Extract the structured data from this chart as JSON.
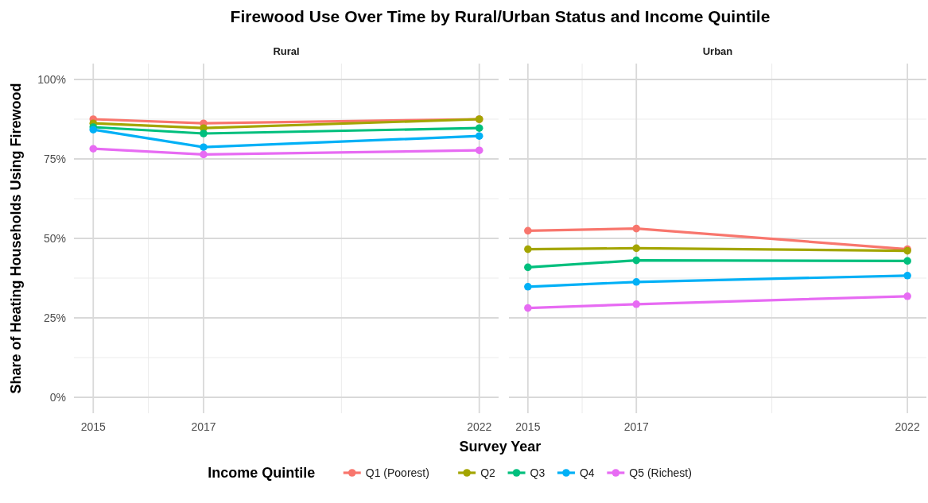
{
  "chart_data": [
    {
      "type": "line",
      "title": "Firewood Use Over Time by Rural/Urban Status and Income Quintile",
      "subtitle": "Rural",
      "xlabel": "Survey Year",
      "ylabel": "Share of Heating Households Using Firewood",
      "legend_title": "Income Quintile",
      "legend": "bottom",
      "grid": true,
      "marker": "circle",
      "line_style": "solid",
      "x": [
        2015,
        2017,
        2022
      ],
      "xlim": [
        2014.65,
        2022.35
      ],
      "xticks": [
        2015,
        2017,
        2022
      ],
      "ylim": [
        -5,
        105
      ],
      "yticks": [
        {
          "value": 0,
          "label": "0%"
        },
        {
          "value": 25,
          "label": "25%"
        },
        {
          "value": 50,
          "label": "50%"
        },
        {
          "value": 75,
          "label": "75%"
        },
        {
          "value": 100,
          "label": "100%"
        }
      ],
      "series": [
        {
          "name": "Q1 (Poorest)",
          "color": "#f8766d",
          "values": [
            87.5,
            86.2,
            87.5
          ]
        },
        {
          "name": "Q2",
          "color": "#a3a500",
          "values": [
            86.2,
            84.7,
            87.5
          ]
        },
        {
          "name": "Q3",
          "color": "#00bf7d",
          "values": [
            85.0,
            83.0,
            84.7
          ]
        },
        {
          "name": "Q4",
          "color": "#00b0f6",
          "values": [
            84.2,
            78.7,
            82.2
          ]
        },
        {
          "name": "Q5 (Richest)",
          "color": "#e76bf3",
          "values": [
            78.2,
            76.4,
            77.7
          ]
        }
      ]
    },
    {
      "type": "line",
      "subtitle": "Urban",
      "grid": true,
      "marker": "circle",
      "line_style": "solid",
      "tick_labels": "x",
      "x": [
        2015,
        2017,
        2022
      ],
      "xlim": [
        2014.65,
        2022.35
      ],
      "xticks": [
        2015,
        2017,
        2022
      ],
      "ylim": [
        -5,
        105
      ],
      "yticks": [
        {
          "value": 0,
          "label": null
        },
        {
          "value": 25,
          "label": null
        },
        {
          "value": 50,
          "label": null
        },
        {
          "value": 75,
          "label": null
        },
        {
          "value": 100,
          "label": null
        }
      ],
      "series": [
        {
          "color": "#f8766d",
          "values": [
            52.4,
            53.1,
            46.6
          ]
        },
        {
          "color": "#a3a500",
          "values": [
            46.6,
            46.9,
            46.1
          ]
        },
        {
          "color": "#00bf7d",
          "values": [
            40.9,
            43.1,
            42.9
          ]
        },
        {
          "color": "#00b0f6",
          "values": [
            34.8,
            36.3,
            38.3
          ]
        },
        {
          "color": "#e76bf3",
          "values": [
            28.1,
            29.3,
            31.8
          ]
        }
      ]
    }
  ]
}
